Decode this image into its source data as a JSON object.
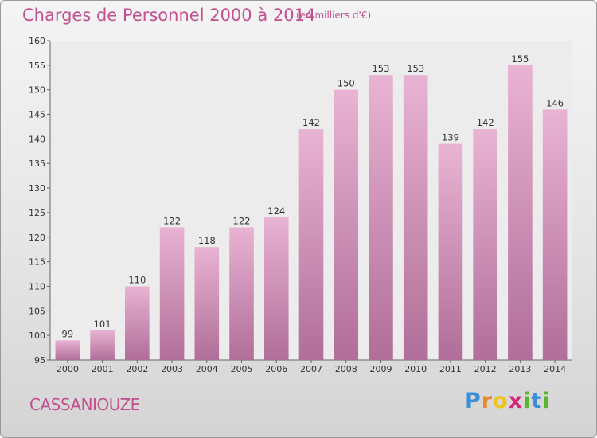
{
  "header": {
    "title": "Charges de Personnel 2000 à 2014",
    "subtitle": "(en milliers d'€)"
  },
  "footer": {
    "commune": "CASSANIOUZE",
    "logo_letters": [
      "P",
      "r",
      "o",
      "x",
      "i",
      "t",
      "i"
    ]
  },
  "colors": {
    "title": "#c2508f",
    "bar_top": "#e9b3d3",
    "bar_bottom": "#b06e98",
    "logo": [
      "#3a8fd6",
      "#e98b2a",
      "#f0c21c",
      "#d8247a",
      "#5cb531",
      "#3a8fd6",
      "#5cb531"
    ]
  },
  "chart_data": {
    "type": "bar",
    "categories": [
      "2000",
      "2001",
      "2002",
      "2003",
      "2004",
      "2005",
      "2006",
      "2007",
      "2008",
      "2009",
      "2010",
      "2011",
      "2012",
      "2013",
      "2014"
    ],
    "values": [
      99,
      101,
      110,
      122,
      118,
      122,
      124,
      142,
      150,
      153,
      153,
      139,
      142,
      155,
      146
    ],
    "ylim": [
      95,
      160
    ],
    "yticks": [
      95,
      100,
      105,
      110,
      115,
      120,
      125,
      130,
      135,
      140,
      145,
      150,
      155,
      160
    ],
    "grid": false,
    "data_labels": true
  }
}
